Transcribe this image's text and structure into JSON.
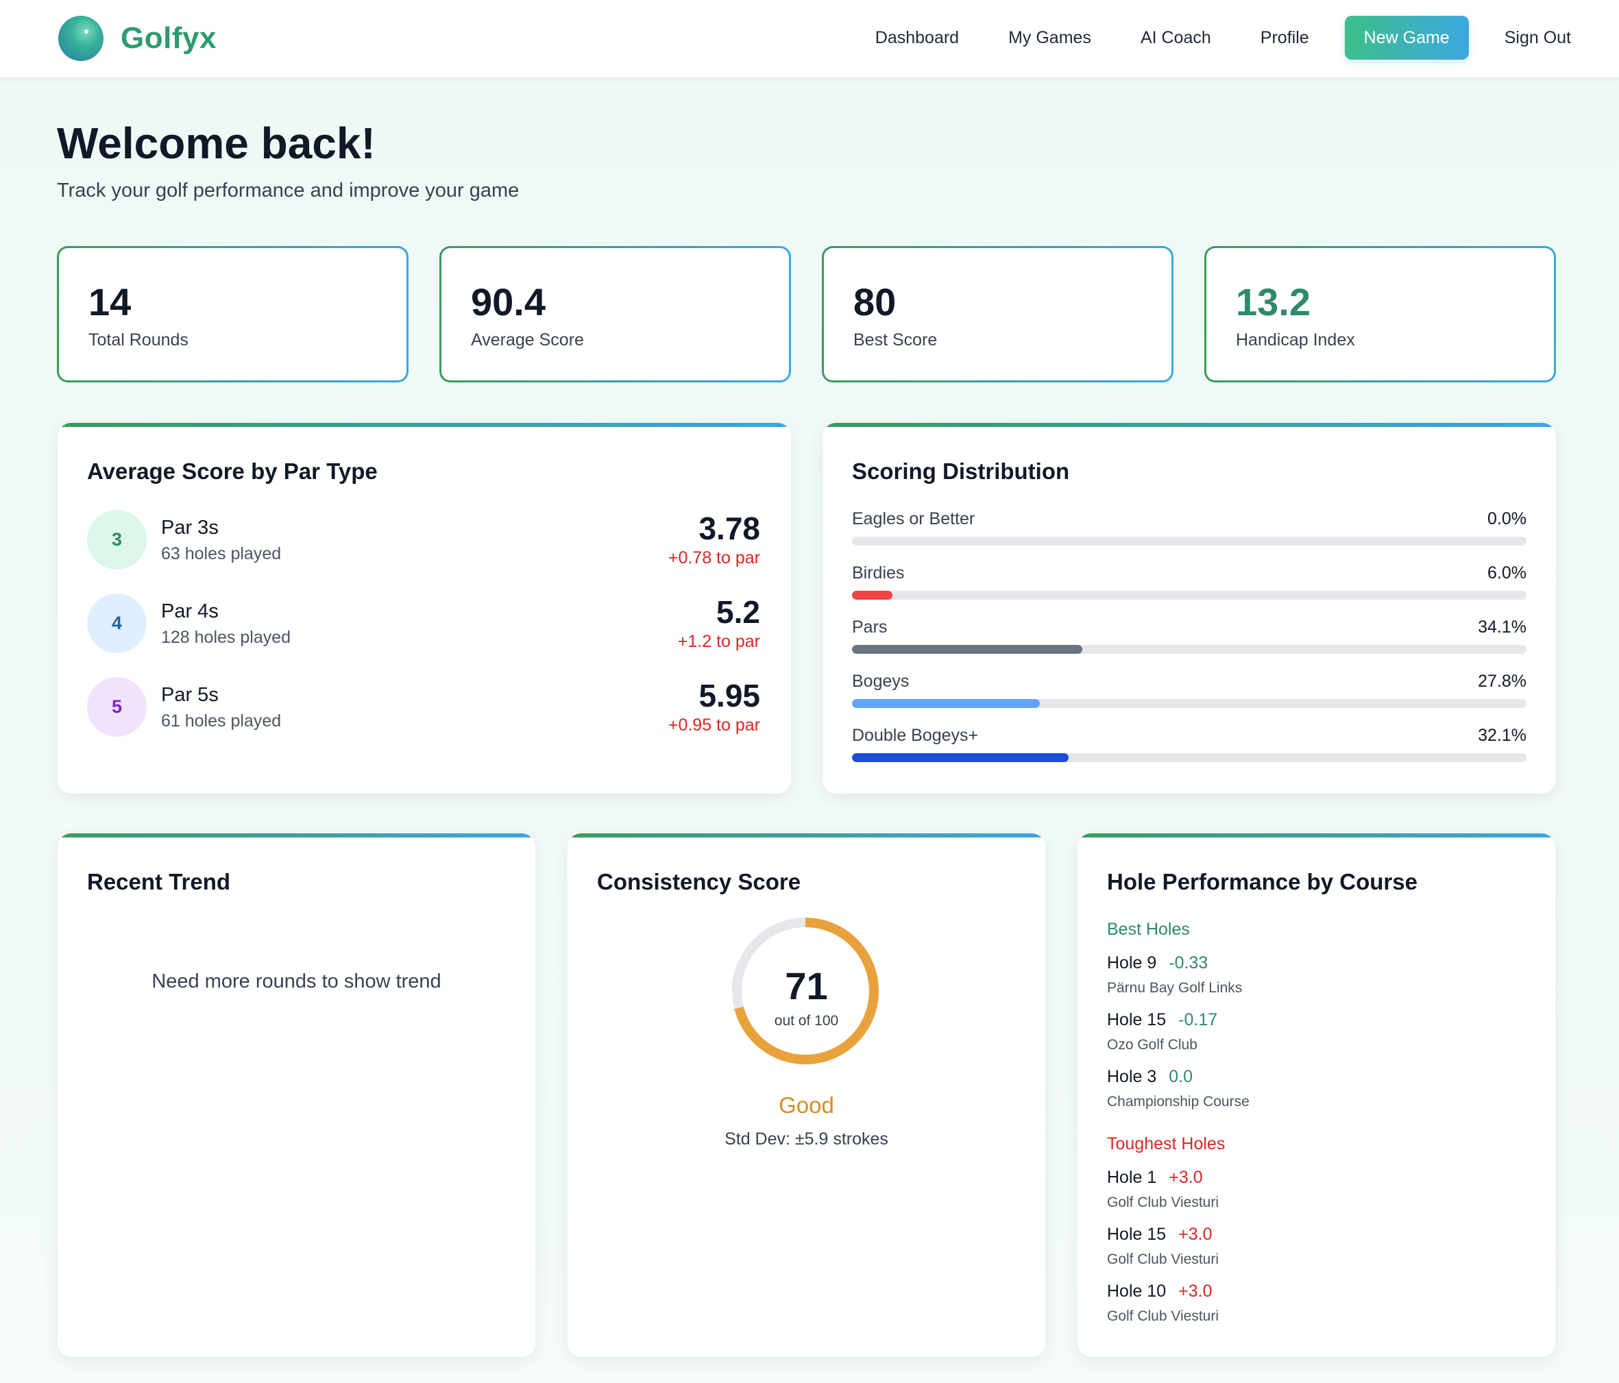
{
  "brand": {
    "name": "Golfyx"
  },
  "nav": {
    "links": [
      "Dashboard",
      "My Games",
      "AI Coach",
      "Profile"
    ],
    "new_game": "New Game",
    "sign_out": "Sign Out"
  },
  "welcome": {
    "title": "Welcome back!",
    "subtitle": "Track your golf performance and improve your game"
  },
  "stats": [
    {
      "value": "14",
      "label": "Total Rounds"
    },
    {
      "value": "90.4",
      "label": "Average Score"
    },
    {
      "value": "80",
      "label": "Best Score"
    },
    {
      "value": "13.2",
      "label": "Handicap Index"
    }
  ],
  "par_type": {
    "title": "Average Score by Par Type",
    "rows": [
      {
        "par": "3",
        "name": "Par 3s",
        "holes": "63 holes played",
        "avg": "3.78",
        "diff": "+0.78 to par"
      },
      {
        "par": "4",
        "name": "Par 4s",
        "holes": "128 holes played",
        "avg": "5.2",
        "diff": "+1.2 to par"
      },
      {
        "par": "5",
        "name": "Par 5s",
        "holes": "61 holes played",
        "avg": "5.95",
        "diff": "+0.95 to par"
      }
    ]
  },
  "distribution": {
    "title": "Scoring Distribution",
    "rows": [
      {
        "label": "Eagles or Better",
        "pct": "0.0%",
        "value": 0.0,
        "color": "#9ca3af"
      },
      {
        "label": "Birdies",
        "pct": "6.0%",
        "value": 6.0,
        "color": "#ef4444"
      },
      {
        "label": "Pars",
        "pct": "34.1%",
        "value": 34.1,
        "color": "#6b7280"
      },
      {
        "label": "Bogeys",
        "pct": "27.8%",
        "value": 27.8,
        "color": "#60a5fa"
      },
      {
        "label": "Double Bogeys+",
        "pct": "32.1%",
        "value": 32.1,
        "color": "#1d4ed8"
      }
    ]
  },
  "trend": {
    "title": "Recent Trend",
    "empty": "Need more rounds to show trend"
  },
  "consistency": {
    "title": "Consistency Score",
    "score": "71",
    "score_value": 71,
    "out_of": "out of 100",
    "rating": "Good",
    "std": "Std Dev: ±5.9 strokes",
    "color": "#e9a23b"
  },
  "holes": {
    "title": "Hole Performance by Course",
    "best_title": "Best Holes",
    "best": [
      {
        "hole": "Hole 9",
        "delta": "-0.33",
        "course": "Pärnu Bay Golf Links"
      },
      {
        "hole": "Hole 15",
        "delta": "-0.17",
        "course": "Ozo Golf Club"
      },
      {
        "hole": "Hole 3",
        "delta": "0.0",
        "course": "Championship Course"
      }
    ],
    "tough_title": "Toughest Holes",
    "tough": [
      {
        "hole": "Hole 1",
        "delta": "+3.0",
        "course": "Golf Club Viesturi"
      },
      {
        "hole": "Hole 15",
        "delta": "+3.0",
        "course": "Golf Club Viesturi"
      },
      {
        "hole": "Hole 10",
        "delta": "+3.0",
        "course": "Golf Club Viesturi"
      }
    ]
  }
}
